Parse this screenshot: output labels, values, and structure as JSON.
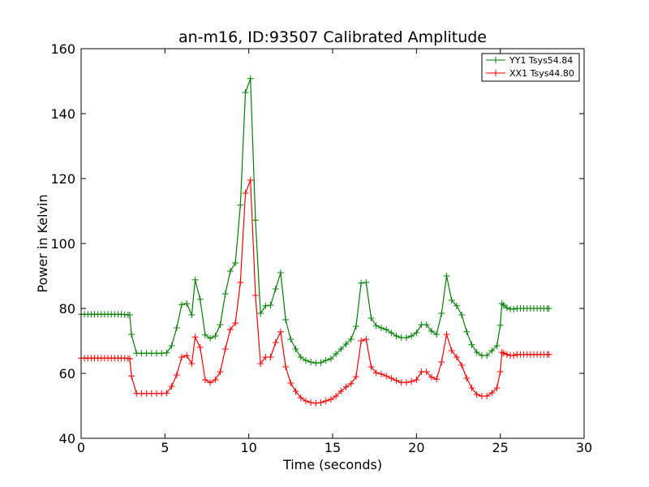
{
  "chart_data": {
    "type": "line",
    "title": "an-m16, ID:93507 Calibrated Amplitude",
    "xlabel": "Time (seconds)",
    "ylabel": "Power in Kelvin",
    "xlim": [
      0,
      30
    ],
    "ylim": [
      40,
      160
    ],
    "xticks": [
      0,
      5,
      10,
      15,
      20,
      25,
      30
    ],
    "yticks": [
      40,
      60,
      80,
      100,
      120,
      140,
      160
    ],
    "grid": false,
    "legend_position": "top-right",
    "marker": "plus",
    "series": [
      {
        "name": "YY1 Tsys54.84",
        "color": "#008000",
        "points": [
          [
            0.0,
            78.2
          ],
          [
            0.2,
            78.2
          ],
          [
            0.4,
            78.2
          ],
          [
            0.6,
            78.2
          ],
          [
            0.8,
            78.2
          ],
          [
            1.0,
            78.2
          ],
          [
            1.2,
            78.2
          ],
          [
            1.4,
            78.2
          ],
          [
            1.6,
            78.2
          ],
          [
            1.8,
            78.2
          ],
          [
            2.0,
            78.2
          ],
          [
            2.2,
            78.2
          ],
          [
            2.4,
            78.2
          ],
          [
            2.6,
            78.1
          ],
          [
            2.8,
            78.0
          ],
          [
            2.9,
            78.0
          ],
          [
            3.0,
            72.0
          ],
          [
            3.3,
            66.2
          ],
          [
            3.6,
            66.2
          ],
          [
            3.9,
            66.2
          ],
          [
            4.2,
            66.2
          ],
          [
            4.5,
            66.2
          ],
          [
            4.8,
            66.2
          ],
          [
            5.1,
            66.3
          ],
          [
            5.4,
            68.5
          ],
          [
            5.7,
            74.0
          ],
          [
            6.0,
            81.2
          ],
          [
            6.3,
            81.5
          ],
          [
            6.6,
            78.0
          ],
          [
            6.8,
            88.8
          ],
          [
            7.1,
            82.8
          ],
          [
            7.4,
            71.8
          ],
          [
            7.7,
            70.8
          ],
          [
            8.0,
            71.5
          ],
          [
            8.3,
            75.0
          ],
          [
            8.6,
            84.5
          ],
          [
            8.9,
            91.5
          ],
          [
            9.2,
            94.0
          ],
          [
            9.5,
            111.8
          ],
          [
            9.8,
            146.5
          ],
          [
            10.1,
            150.8
          ],
          [
            10.4,
            107.2
          ],
          [
            10.7,
            78.5
          ],
          [
            11.0,
            80.8
          ],
          [
            11.3,
            81.0
          ],
          [
            11.6,
            86.0
          ],
          [
            11.9,
            91.0
          ],
          [
            12.2,
            76.5
          ],
          [
            12.5,
            70.5
          ],
          [
            12.8,
            67.5
          ],
          [
            13.1,
            65.0
          ],
          [
            13.4,
            64.0
          ],
          [
            13.7,
            63.5
          ],
          [
            14.0,
            63.2
          ],
          [
            14.3,
            63.3
          ],
          [
            14.6,
            64.0
          ],
          [
            14.9,
            64.5
          ],
          [
            15.2,
            66.0
          ],
          [
            15.5,
            67.5
          ],
          [
            15.8,
            69.0
          ],
          [
            16.1,
            70.5
          ],
          [
            16.4,
            74.5
          ],
          [
            16.7,
            87.8
          ],
          [
            17.0,
            88.0
          ],
          [
            17.3,
            77.0
          ],
          [
            17.6,
            74.7
          ],
          [
            17.9,
            74.0
          ],
          [
            18.2,
            73.5
          ],
          [
            18.5,
            72.5
          ],
          [
            18.8,
            71.5
          ],
          [
            19.1,
            71.0
          ],
          [
            19.4,
            71.0
          ],
          [
            19.7,
            71.5
          ],
          [
            20.0,
            72.5
          ],
          [
            20.3,
            75.0
          ],
          [
            20.6,
            75.0
          ],
          [
            20.9,
            73.0
          ],
          [
            21.2,
            72.0
          ],
          [
            21.5,
            78.5
          ],
          [
            21.8,
            90.0
          ],
          [
            22.1,
            82.5
          ],
          [
            22.4,
            80.8
          ],
          [
            22.7,
            78.0
          ],
          [
            23.0,
            72.8
          ],
          [
            23.3,
            68.8
          ],
          [
            23.6,
            66.5
          ],
          [
            23.9,
            65.5
          ],
          [
            24.2,
            65.5
          ],
          [
            24.5,
            67.0
          ],
          [
            24.8,
            68.5
          ],
          [
            25.0,
            74.8
          ],
          [
            25.1,
            81.5
          ],
          [
            25.2,
            81.0
          ],
          [
            25.4,
            80.2
          ],
          [
            25.6,
            79.8
          ],
          [
            25.8,
            79.8
          ],
          [
            26.0,
            80.0
          ],
          [
            26.2,
            80.0
          ],
          [
            26.4,
            80.0
          ],
          [
            26.6,
            80.0
          ],
          [
            26.8,
            80.0
          ],
          [
            27.0,
            80.0
          ],
          [
            27.2,
            80.0
          ],
          [
            27.4,
            80.0
          ],
          [
            27.6,
            80.0
          ],
          [
            27.8,
            80.0
          ],
          [
            27.9,
            80.0
          ]
        ]
      },
      {
        "name": "XX1 Tsys44.80",
        "color": "#ff0000",
        "points": [
          [
            0.0,
            64.7
          ],
          [
            0.2,
            64.7
          ],
          [
            0.4,
            64.7
          ],
          [
            0.6,
            64.7
          ],
          [
            0.8,
            64.7
          ],
          [
            1.0,
            64.7
          ],
          [
            1.2,
            64.7
          ],
          [
            1.4,
            64.7
          ],
          [
            1.6,
            64.7
          ],
          [
            1.8,
            64.7
          ],
          [
            2.0,
            64.7
          ],
          [
            2.2,
            64.7
          ],
          [
            2.4,
            64.7
          ],
          [
            2.6,
            64.7
          ],
          [
            2.8,
            64.6
          ],
          [
            2.9,
            64.5
          ],
          [
            3.0,
            59.2
          ],
          [
            3.3,
            53.8
          ],
          [
            3.6,
            53.8
          ],
          [
            3.9,
            53.8
          ],
          [
            4.2,
            53.8
          ],
          [
            4.5,
            53.8
          ],
          [
            4.8,
            53.8
          ],
          [
            5.1,
            53.9
          ],
          [
            5.4,
            56.0
          ],
          [
            5.7,
            59.5
          ],
          [
            6.0,
            65.0
          ],
          [
            6.3,
            65.5
          ],
          [
            6.6,
            63.0
          ],
          [
            6.8,
            71.2
          ],
          [
            7.1,
            68.0
          ],
          [
            7.4,
            58.0
          ],
          [
            7.7,
            57.2
          ],
          [
            8.0,
            58.0
          ],
          [
            8.3,
            60.5
          ],
          [
            8.6,
            67.5
          ],
          [
            8.9,
            73.5
          ],
          [
            9.2,
            75.5
          ],
          [
            9.5,
            88.0
          ],
          [
            9.8,
            115.5
          ],
          [
            10.1,
            119.5
          ],
          [
            10.4,
            84.0
          ],
          [
            10.7,
            63.0
          ],
          [
            11.0,
            65.0
          ],
          [
            11.3,
            65.0
          ],
          [
            11.6,
            69.5
          ],
          [
            11.9,
            72.8
          ],
          [
            12.2,
            62.0
          ],
          [
            12.5,
            57.0
          ],
          [
            12.8,
            54.5
          ],
          [
            13.1,
            52.5
          ],
          [
            13.4,
            51.5
          ],
          [
            13.7,
            51.0
          ],
          [
            14.0,
            50.8
          ],
          [
            14.3,
            51.0
          ],
          [
            14.6,
            51.5
          ],
          [
            14.9,
            52.0
          ],
          [
            15.2,
            53.0
          ],
          [
            15.5,
            54.5
          ],
          [
            15.8,
            55.8
          ],
          [
            16.1,
            56.8
          ],
          [
            16.4,
            59.0
          ],
          [
            16.7,
            70.0
          ],
          [
            17.0,
            70.5
          ],
          [
            17.3,
            62.0
          ],
          [
            17.6,
            60.2
          ],
          [
            17.9,
            59.8
          ],
          [
            18.2,
            59.2
          ],
          [
            18.5,
            58.5
          ],
          [
            18.8,
            57.8
          ],
          [
            19.1,
            57.2
          ],
          [
            19.4,
            57.2
          ],
          [
            19.7,
            57.5
          ],
          [
            20.0,
            58.0
          ],
          [
            20.3,
            60.5
          ],
          [
            20.6,
            60.5
          ],
          [
            20.9,
            58.8
          ],
          [
            21.2,
            58.2
          ],
          [
            21.5,
            63.5
          ],
          [
            21.8,
            72.0
          ],
          [
            22.1,
            67.0
          ],
          [
            22.4,
            65.0
          ],
          [
            22.7,
            62.5
          ],
          [
            23.0,
            58.5
          ],
          [
            23.3,
            55.5
          ],
          [
            23.6,
            53.5
          ],
          [
            23.9,
            53.0
          ],
          [
            24.2,
            53.0
          ],
          [
            24.5,
            54.0
          ],
          [
            24.8,
            55.5
          ],
          [
            25.0,
            60.5
          ],
          [
            25.1,
            66.5
          ],
          [
            25.2,
            66.2
          ],
          [
            25.4,
            65.8
          ],
          [
            25.6,
            65.5
          ],
          [
            25.8,
            65.5
          ],
          [
            26.0,
            65.8
          ],
          [
            26.2,
            65.8
          ],
          [
            26.4,
            65.8
          ],
          [
            26.6,
            65.8
          ],
          [
            26.8,
            65.8
          ],
          [
            27.0,
            65.8
          ],
          [
            27.2,
            65.8
          ],
          [
            27.4,
            65.8
          ],
          [
            27.6,
            65.8
          ],
          [
            27.8,
            65.8
          ],
          [
            27.9,
            65.8
          ]
        ]
      }
    ]
  }
}
